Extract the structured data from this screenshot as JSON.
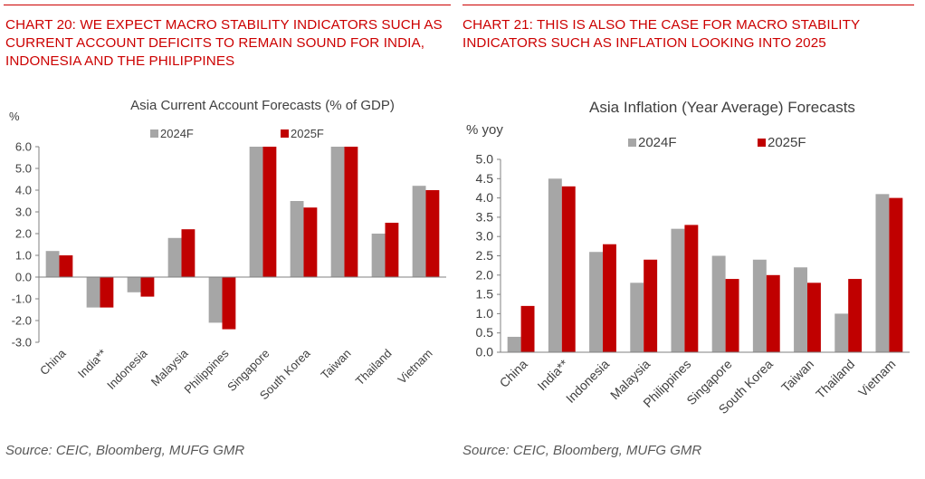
{
  "colors": {
    "accent": "#cc0000",
    "series_2024": "#a6a6a6",
    "series_2025": "#c00000"
  },
  "source_label": "Source: CEIC, Bloomberg, MUFG GMR",
  "charts": {
    "left": {
      "heading": "CHART 20: WE EXPECT MACRO STABILITY INDICATORS SUCH AS CURRENT ACCOUNT DEFICITS TO REMAIN SOUND FOR INDIA, INDONESIA AND THE PHILIPPINES"
    },
    "right": {
      "heading": "CHART 21: THIS IS ALSO THE CASE FOR MACRO STABILITY INDICATORS SUCH AS INFLATION LOOKING INTO 2025"
    }
  },
  "chart_data": [
    {
      "type": "bar",
      "title": "Asia Current Account Forecasts (% of GDP)",
      "ylabel": "%",
      "xlabel": "",
      "ylim": [
        -3.0,
        6.0
      ],
      "yticks": [
        "6.0",
        "5.0",
        "4.0",
        "3.0",
        "2.0",
        "1.0",
        "0.0",
        "-1.0",
        "-2.0",
        "-3.0"
      ],
      "ytick_values": [
        6,
        5,
        4,
        3,
        2,
        1,
        0,
        -1,
        -2,
        -3
      ],
      "grid": false,
      "legend_position": "top",
      "categories": [
        "China",
        "India**",
        "Indonesia",
        "Malaysia",
        "Philippines",
        "Singapore",
        "South Korea",
        "Taiwan",
        "Thailand",
        "Vietnam"
      ],
      "series": [
        {
          "name": "2024F",
          "values": [
            1.2,
            -1.4,
            -0.7,
            1.8,
            -2.1,
            6.0,
            3.5,
            6.0,
            2.0,
            4.2
          ]
        },
        {
          "name": "2025F",
          "values": [
            1.0,
            -1.4,
            -0.9,
            2.2,
            -2.4,
            6.0,
            3.2,
            6.0,
            2.5,
            4.0
          ]
        }
      ]
    },
    {
      "type": "bar",
      "title": "Asia Inflation (Year Average) Forecasts",
      "ylabel": "% yoy",
      "xlabel": "",
      "ylim": [
        0.0,
        5.0
      ],
      "yticks": [
        "5.0",
        "4.5",
        "4.0",
        "3.5",
        "3.0",
        "2.5",
        "2.0",
        "1.5",
        "1.0",
        "0.5",
        "0.0"
      ],
      "ytick_values": [
        5,
        4.5,
        4,
        3.5,
        3,
        2.5,
        2,
        1.5,
        1,
        0.5,
        0
      ],
      "grid": false,
      "legend_position": "top",
      "categories": [
        "China",
        "India**",
        "Indonesia",
        "Malaysia",
        "Philippines",
        "Singapore",
        "South Korea",
        "Taiwan",
        "Thailand",
        "Vietnam"
      ],
      "series": [
        {
          "name": "2024F",
          "values": [
            0.4,
            4.5,
            2.6,
            1.8,
            3.2,
            2.5,
            2.4,
            2.2,
            1.0,
            4.1
          ]
        },
        {
          "name": "2025F",
          "values": [
            1.2,
            4.3,
            2.8,
            2.4,
            3.3,
            1.9,
            2.0,
            1.8,
            1.9,
            4.0
          ]
        }
      ]
    }
  ]
}
